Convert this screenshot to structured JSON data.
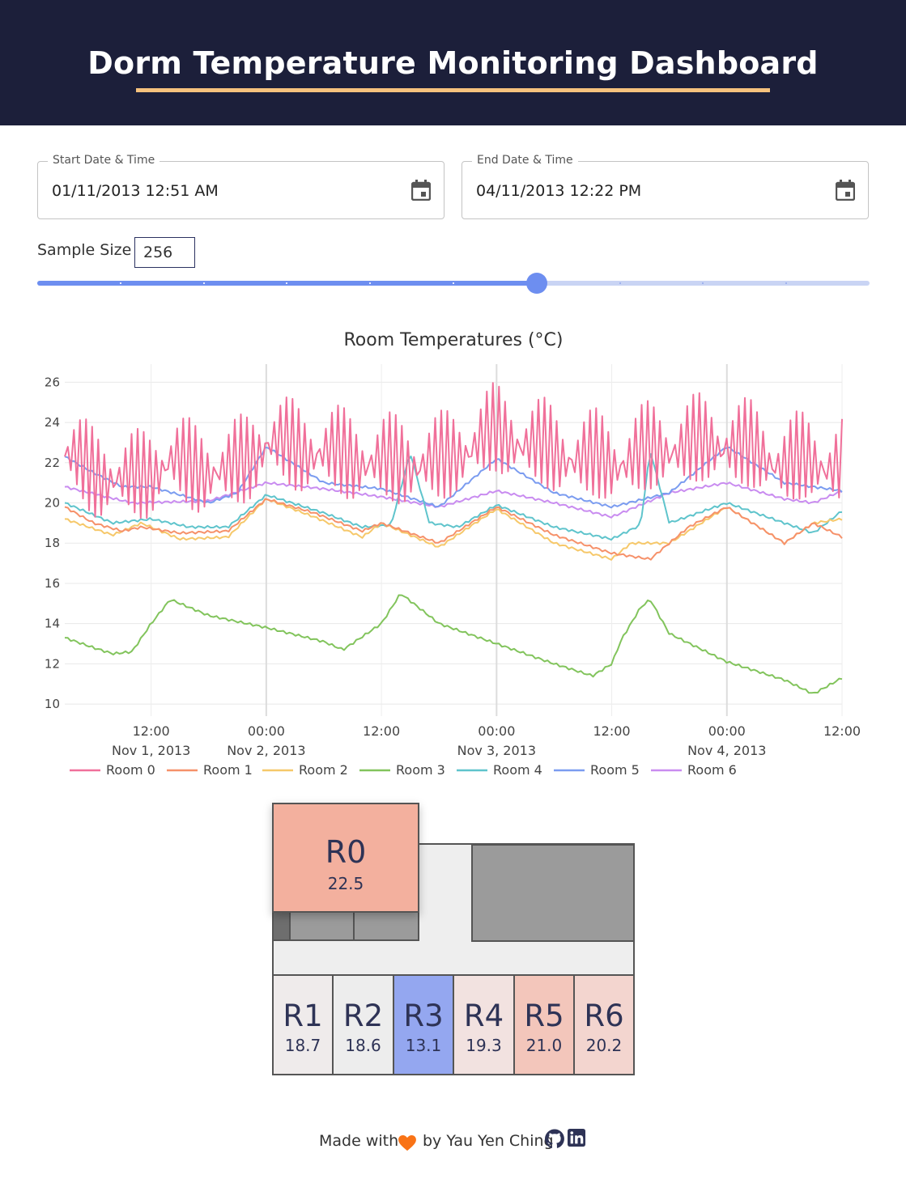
{
  "header": {
    "title": "Dorm Temperature Monitoring Dashboard"
  },
  "controls": {
    "start": {
      "label": "Start Date & Time",
      "value": "01/11/2013 12:51 AM",
      "icon": "calendar-icon"
    },
    "end": {
      "label": "End Date & Time",
      "value": "04/11/2013 12:22 PM",
      "icon": "calendar-icon"
    },
    "sample": {
      "label": "Sample Size",
      "value": "256",
      "slider_fraction": 0.6
    }
  },
  "chart_data": {
    "type": "line",
    "title": "Room Temperatures (°C)",
    "x_tick_labels": [
      "12:00",
      "00:00",
      "12:00",
      "00:00",
      "12:00",
      "00:00",
      "12:00"
    ],
    "x_date_labels": [
      "Nov 1, 2013",
      "Nov 2, 2013",
      "Nov 3, 2013",
      "Nov 4, 2013"
    ],
    "y_ticks": [
      10,
      12,
      14,
      16,
      18,
      20,
      22,
      24,
      26
    ],
    "ylim": [
      9.4,
      26.9
    ],
    "xlim": [
      "2013-11-01T03:00",
      "2013-11-04T12:00"
    ],
    "grid": true,
    "legend_position": "bottom",
    "series": [
      {
        "name": "Room 0",
        "color": "#f0709a",
        "oscillating": true,
        "points": [
          [
            "2013-11-01T03:00",
            22.3
          ],
          [
            "2013-11-01T09:00",
            21.0
          ],
          [
            "2013-11-01T14:00",
            22.0
          ],
          [
            "2013-11-01T20:00",
            21.5
          ],
          [
            "2013-11-02T00:00",
            23.0
          ],
          [
            "2013-11-02T06:00",
            22.5
          ],
          [
            "2013-11-02T12:00",
            22.0
          ],
          [
            "2013-11-02T18:00",
            22.0
          ],
          [
            "2013-11-03T00:00",
            23.5
          ],
          [
            "2013-11-03T06:00",
            22.5
          ],
          [
            "2013-11-03T12:00",
            22.0
          ],
          [
            "2013-11-03T18:00",
            22.8
          ],
          [
            "2013-11-04T00:00",
            23.0
          ],
          [
            "2013-11-04T06:00",
            22.0
          ],
          [
            "2013-11-04T12:00",
            22.0
          ]
        ]
      },
      {
        "name": "Room 1",
        "color": "#f6916a",
        "points": [
          [
            "2013-11-01T03:00",
            19.8
          ],
          [
            "2013-11-01T06:00",
            19.0
          ],
          [
            "2013-11-01T09:00",
            18.6
          ],
          [
            "2013-11-01T11:00",
            18.8
          ],
          [
            "2013-11-01T15:00",
            18.5
          ],
          [
            "2013-11-01T20:00",
            18.6
          ],
          [
            "2013-11-02T00:00",
            20.2
          ],
          [
            "2013-11-02T05:00",
            19.5
          ],
          [
            "2013-11-02T10:00",
            18.6
          ],
          [
            "2013-11-02T12:00",
            19.0
          ],
          [
            "2013-11-02T18:00",
            18.0
          ],
          [
            "2013-11-03T00:00",
            19.8
          ],
          [
            "2013-11-03T06:00",
            18.4
          ],
          [
            "2013-11-03T12:00",
            17.5
          ],
          [
            "2013-11-03T16:00",
            17.2
          ],
          [
            "2013-11-03T20:00",
            18.8
          ],
          [
            "2013-11-04T00:00",
            19.8
          ],
          [
            "2013-11-04T06:00",
            18.0
          ],
          [
            "2013-11-04T09:00",
            19.0
          ],
          [
            "2013-11-04T12:00",
            18.3
          ]
        ]
      },
      {
        "name": "Room 2",
        "color": "#f6c86a",
        "points": [
          [
            "2013-11-01T03:00",
            19.2
          ],
          [
            "2013-11-01T08:00",
            18.4
          ],
          [
            "2013-11-01T11:00",
            19.0
          ],
          [
            "2013-11-01T15:00",
            18.2
          ],
          [
            "2013-11-01T20:00",
            18.3
          ],
          [
            "2013-11-02T00:00",
            20.2
          ],
          [
            "2013-11-02T05:00",
            19.3
          ],
          [
            "2013-11-02T10:00",
            18.3
          ],
          [
            "2013-11-02T12:00",
            19.0
          ],
          [
            "2013-11-02T18:00",
            17.8
          ],
          [
            "2013-11-03T00:00",
            19.7
          ],
          [
            "2013-11-03T06:00",
            18.0
          ],
          [
            "2013-11-03T12:00",
            17.2
          ],
          [
            "2013-11-03T14:00",
            18.0
          ],
          [
            "2013-11-03T18:00",
            18.0
          ],
          [
            "2013-11-04T00:00",
            19.8
          ],
          [
            "2013-11-04T06:00",
            18.0
          ],
          [
            "2013-11-04T09:00",
            19.0
          ],
          [
            "2013-11-04T12:00",
            19.2
          ]
        ]
      },
      {
        "name": "Room 3",
        "color": "#82c45c",
        "points": [
          [
            "2013-11-01T03:00",
            13.3
          ],
          [
            "2013-11-01T06:00",
            12.8
          ],
          [
            "2013-11-01T08:00",
            12.5
          ],
          [
            "2013-11-01T10:00",
            12.6
          ],
          [
            "2013-11-01T12:00",
            14.0
          ],
          [
            "2013-11-01T14:00",
            15.2
          ],
          [
            "2013-11-01T18:00",
            14.4
          ],
          [
            "2013-11-02T00:00",
            13.8
          ],
          [
            "2013-11-02T06:00",
            13.1
          ],
          [
            "2013-11-02T08:00",
            12.7
          ],
          [
            "2013-11-02T12:00",
            14.0
          ],
          [
            "2013-11-02T14:00",
            15.5
          ],
          [
            "2013-11-02T18:00",
            14.0
          ],
          [
            "2013-11-03T00:00",
            13.0
          ],
          [
            "2013-11-03T06:00",
            12.0
          ],
          [
            "2013-11-03T10:00",
            11.4
          ],
          [
            "2013-11-03T12:00",
            12.0
          ],
          [
            "2013-11-03T13:00",
            13.2
          ],
          [
            "2013-11-03T15:00",
            14.8
          ],
          [
            "2013-11-03T16:00",
            15.2
          ],
          [
            "2013-11-03T18:00",
            13.5
          ],
          [
            "2013-11-04T00:00",
            12.1
          ],
          [
            "2013-11-04T06:00",
            11.2
          ],
          [
            "2013-11-04T09:00",
            10.5
          ],
          [
            "2013-11-04T12:00",
            11.3
          ]
        ]
      },
      {
        "name": "Room 4",
        "color": "#5fc4cc",
        "points": [
          [
            "2013-11-01T03:00",
            20.0
          ],
          [
            "2013-11-01T08:00",
            19.0
          ],
          [
            "2013-11-01T12:00",
            19.2
          ],
          [
            "2013-11-01T16:00",
            18.8
          ],
          [
            "2013-11-01T20:00",
            18.8
          ],
          [
            "2013-11-02T00:00",
            20.4
          ],
          [
            "2013-11-02T06:00",
            19.5
          ],
          [
            "2013-11-02T10:00",
            18.8
          ],
          [
            "2013-11-02T13:00",
            18.9
          ],
          [
            "2013-11-02T15:00",
            22.5
          ],
          [
            "2013-11-02T17:00",
            19.0
          ],
          [
            "2013-11-02T20:00",
            18.8
          ],
          [
            "2013-11-03T00:00",
            19.9
          ],
          [
            "2013-11-03T06:00",
            18.8
          ],
          [
            "2013-11-03T12:00",
            18.2
          ],
          [
            "2013-11-03T15:00",
            18.9
          ],
          [
            "2013-11-03T16:00",
            22.6
          ],
          [
            "2013-11-03T18:00",
            19.0
          ],
          [
            "2013-11-04T00:00",
            20.0
          ],
          [
            "2013-11-04T06:00",
            19.0
          ],
          [
            "2013-11-04T09:00",
            18.5
          ],
          [
            "2013-11-04T12:00",
            19.6
          ]
        ]
      },
      {
        "name": "Room 5",
        "color": "#7b9cf0",
        "points": [
          [
            "2013-11-01T03:00",
            22.3
          ],
          [
            "2013-11-01T06:00",
            21.5
          ],
          [
            "2013-11-01T09:00",
            20.8
          ],
          [
            "2013-11-01T12:00",
            20.8
          ],
          [
            "2013-11-01T18:00",
            20.0
          ],
          [
            "2013-11-01T21:00",
            20.5
          ],
          [
            "2013-11-02T00:00",
            22.8
          ],
          [
            "2013-11-02T06:00",
            21.0
          ],
          [
            "2013-11-02T12:00",
            20.7
          ],
          [
            "2013-11-02T18:00",
            19.8
          ],
          [
            "2013-11-03T00:00",
            22.2
          ],
          [
            "2013-11-03T06:00",
            20.5
          ],
          [
            "2013-11-03T12:00",
            19.8
          ],
          [
            "2013-11-03T18:00",
            20.5
          ],
          [
            "2013-11-04T00:00",
            22.8
          ],
          [
            "2013-11-04T06:00",
            21.0
          ],
          [
            "2013-11-04T09:00",
            20.8
          ],
          [
            "2013-11-04T12:00",
            20.6
          ]
        ]
      },
      {
        "name": "Room 6",
        "color": "#c98cf0",
        "points": [
          [
            "2013-11-01T03:00",
            20.8
          ],
          [
            "2013-11-01T10:00",
            20.0
          ],
          [
            "2013-11-01T18:00",
            20.1
          ],
          [
            "2013-11-02T00:00",
            21.0
          ],
          [
            "2013-11-02T06:00",
            20.7
          ],
          [
            "2013-11-02T12:00",
            20.3
          ],
          [
            "2013-11-02T18:00",
            19.8
          ],
          [
            "2013-11-03T00:00",
            20.6
          ],
          [
            "2013-11-03T06:00",
            20.0
          ],
          [
            "2013-11-03T12:00",
            19.3
          ],
          [
            "2013-11-03T18:00",
            20.5
          ],
          [
            "2013-11-04T00:00",
            21.0
          ],
          [
            "2013-11-04T06:00",
            20.2
          ],
          [
            "2013-11-04T09:00",
            20.0
          ],
          [
            "2013-11-04T12:00",
            20.6
          ]
        ]
      }
    ]
  },
  "floorplan": {
    "rooms": [
      {
        "id": "R0",
        "value": "22.5",
        "color": "#f3b09e"
      },
      {
        "id": "R1",
        "value": "18.7",
        "color": "#efebeb"
      },
      {
        "id": "R2",
        "value": "18.6",
        "color": "#ededed"
      },
      {
        "id": "R3",
        "value": "13.1",
        "color": "#94a7f0"
      },
      {
        "id": "R4",
        "value": "19.3",
        "color": "#f2e2e0"
      },
      {
        "id": "R5",
        "value": "21.0",
        "color": "#f3c6bb"
      },
      {
        "id": "R6",
        "value": "20.2",
        "color": "#f3d5cf"
      }
    ],
    "hall_color": "#eeeeee",
    "block_color": "#9b9b9b"
  },
  "footer": {
    "made_with": "Made with",
    "by": "by Yau Yen Ching",
    "heart_color": "#f97316",
    "icons": [
      "heart-icon",
      "github-icon",
      "linkedin-icon"
    ]
  }
}
